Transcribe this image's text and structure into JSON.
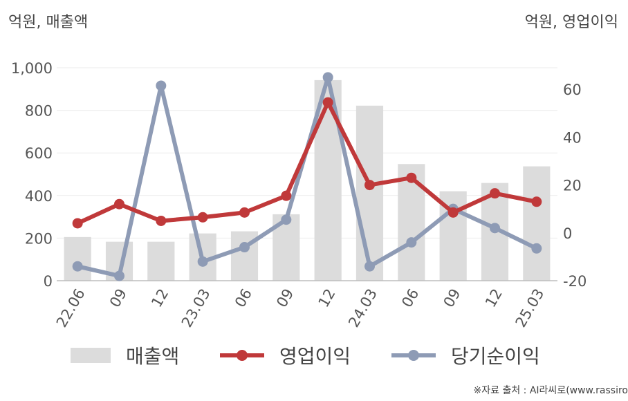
{
  "units": {
    "left": "억원, 매출액",
    "right": "억원, 영업이익"
  },
  "chart_data": {
    "type": "bar+line",
    "categories": [
      "22.06",
      "09",
      "12",
      "23.03",
      "06",
      "09",
      "12",
      "24.03",
      "06",
      "09",
      "12",
      "25.03"
    ],
    "y_left": {
      "ticks": [
        "0",
        "200",
        "400",
        "600",
        "800",
        "1,000"
      ],
      "ylim": [
        0,
        1000
      ]
    },
    "y_right": {
      "ticks": [
        "-20",
        "0",
        "20",
        "40",
        "60"
      ],
      "ylim": [
        -20,
        69
      ]
    },
    "series": [
      {
        "name": "매출액",
        "type": "bar",
        "axis": "left",
        "color": "#dcdcdc",
        "values": [
          205,
          183,
          183,
          222,
          232,
          312,
          942,
          822,
          548,
          420,
          459,
          537
        ]
      },
      {
        "name": "영업이익",
        "type": "line",
        "axis": "right",
        "color": "#c0393a",
        "values": [
          4,
          12,
          5,
          6.5,
          8.5,
          15.5,
          54.5,
          20,
          23,
          8.5,
          16.5,
          13
        ]
      },
      {
        "name": "당기순이익",
        "type": "line",
        "axis": "right",
        "color": "#8e9bb5",
        "values": [
          -14,
          -18,
          61.5,
          -12,
          -6,
          5.5,
          65,
          -14,
          -4,
          10,
          2,
          -6.5
        ]
      }
    ],
    "grid": true,
    "legend": "bottom"
  },
  "legend": {
    "revenue_label": "매출액",
    "op_label": "영업이익",
    "net_label": "당기순이익"
  },
  "source": "※자료 출처 : AI라씨로(www.rassiro"
}
